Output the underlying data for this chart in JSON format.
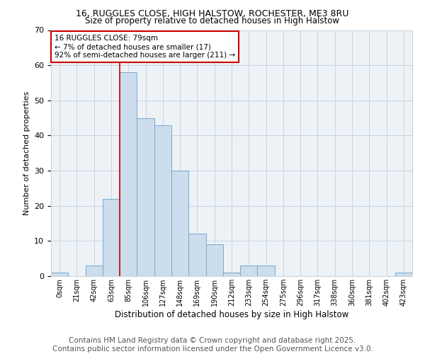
{
  "title1": "16, RUGGLES CLOSE, HIGH HALSTOW, ROCHESTER, ME3 8RU",
  "title2": "Size of property relative to detached houses in High Halstow",
  "xlabel": "Distribution of detached houses by size in High Halstow",
  "ylabel": "Number of detached properties",
  "bin_labels": [
    "0sqm",
    "21sqm",
    "42sqm",
    "63sqm",
    "85sqm",
    "106sqm",
    "127sqm",
    "148sqm",
    "169sqm",
    "190sqm",
    "212sqm",
    "233sqm",
    "254sqm",
    "275sqm",
    "296sqm",
    "317sqm",
    "338sqm",
    "360sqm",
    "381sqm",
    "402sqm",
    "423sqm"
  ],
  "bin_values": [
    1,
    0,
    3,
    22,
    58,
    45,
    43,
    30,
    12,
    9,
    1,
    3,
    3,
    0,
    0,
    0,
    0,
    0,
    0,
    0,
    1
  ],
  "bar_color": "#ccdded",
  "bar_edge_color": "#7aaac8",
  "vline_x_index": 4,
  "vline_color": "#cc0000",
  "annotation_text": "16 RUGGLES CLOSE: 79sqm\n← 7% of detached houses are smaller (17)\n92% of semi-detached houses are larger (211) →",
  "annotation_box_color": "#ffffff",
  "annotation_box_edge": "#cc0000",
  "ylim": [
    0,
    70
  ],
  "yticks": [
    0,
    10,
    20,
    30,
    40,
    50,
    60,
    70
  ],
  "grid_color": "#c8d4de",
  "background_color": "#edf2f7",
  "footer_text": "Contains HM Land Registry data © Crown copyright and database right 2025.\nContains public sector information licensed under the Open Government Licence v3.0.",
  "footer_fontsize": 7.5,
  "title1_fontsize": 9,
  "title2_fontsize": 8.5
}
